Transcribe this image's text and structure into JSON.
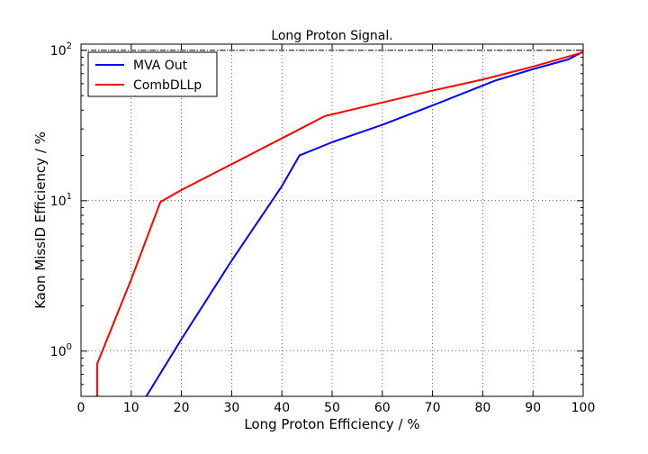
{
  "chart_data": {
    "type": "line",
    "title": "Long Proton Signal.",
    "xlabel": "Long Proton Efficiency / %",
    "ylabel": "Kaon MissID Efficiency / %",
    "xlim": [
      0,
      100
    ],
    "ylim": [
      0.5,
      110
    ],
    "yscale": "log",
    "grid": true,
    "legend_position": "top-left",
    "x_ticks": [
      0,
      10,
      20,
      30,
      40,
      50,
      60,
      70,
      80,
      90,
      100
    ],
    "x_tick_labels": [
      "0",
      "10",
      "20",
      "30",
      "40",
      "50",
      "60",
      "70",
      "80",
      "90",
      "100"
    ],
    "y_ticks": [
      1,
      10,
      100
    ],
    "y_tick_labels": [
      {
        "base": "10",
        "exp": "0"
      },
      {
        "base": "10",
        "exp": "1"
      },
      {
        "base": "10",
        "exp": "2"
      }
    ],
    "reference_line": {
      "y": 100,
      "style": "dash-dot",
      "color": "#000000"
    },
    "series": [
      {
        "name": "MVA Out",
        "color": "#0000ff",
        "points": [
          [
            13,
            0.5
          ],
          [
            20,
            1.2
          ],
          [
            30,
            4.0
          ],
          [
            40,
            12.5
          ],
          [
            43.5,
            20
          ],
          [
            50,
            24.5
          ],
          [
            60,
            32
          ],
          [
            70,
            43
          ],
          [
            82.5,
            63
          ],
          [
            90,
            75
          ],
          [
            97,
            87
          ],
          [
            100,
            98
          ]
        ]
      },
      {
        "name": "CombDLLp",
        "color": "#ff0000",
        "points": [
          [
            3.2,
            0.5
          ],
          [
            3.2,
            0.82
          ],
          [
            10,
            3.0
          ],
          [
            15.8,
            9.8
          ],
          [
            20,
            11.8
          ],
          [
            30,
            17.5
          ],
          [
            40,
            26
          ],
          [
            48.5,
            36.5
          ],
          [
            60,
            45
          ],
          [
            70,
            54
          ],
          [
            80,
            64
          ],
          [
            90,
            78
          ],
          [
            100,
            97
          ]
        ]
      }
    ]
  }
}
